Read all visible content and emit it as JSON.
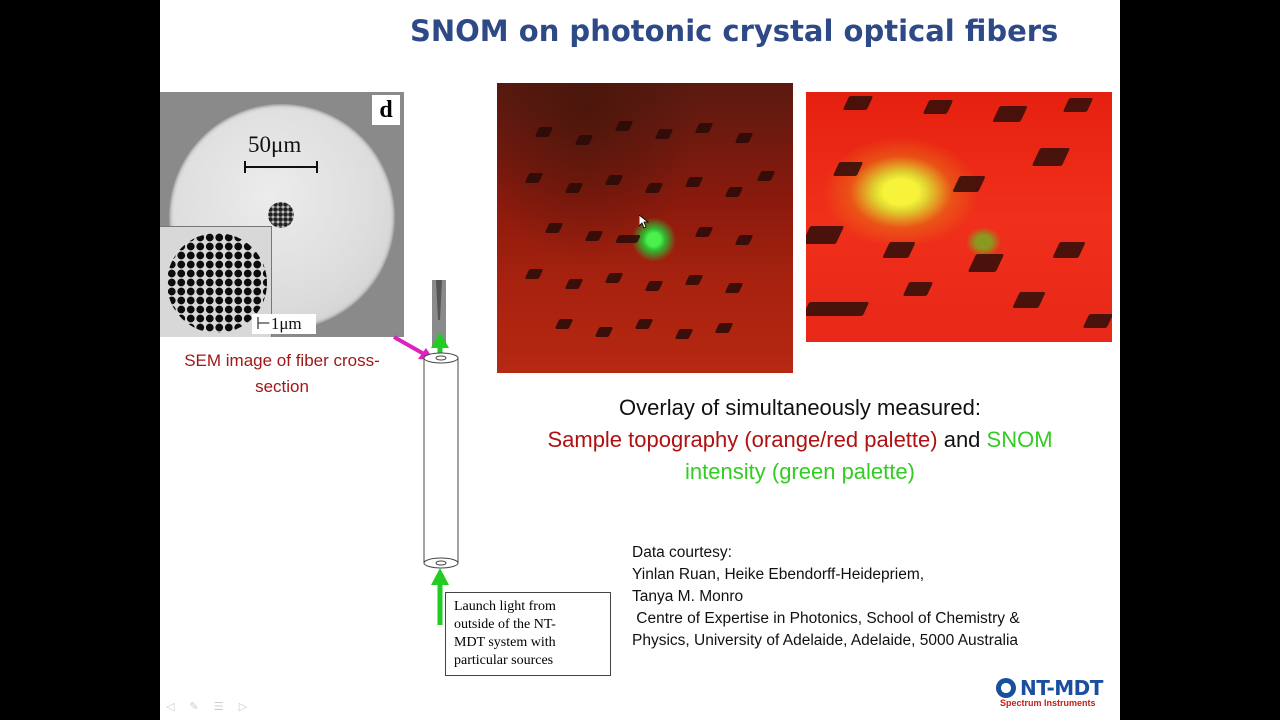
{
  "slide": {
    "title": "SNOM on photonic crystal optical fibers",
    "sem": {
      "panel_label": "d",
      "scale_large": "50μm",
      "scale_small": "1μm",
      "caption_line1": "SEM image of fiber cross-",
      "caption_line2": "section"
    },
    "launch_box": {
      "line1": "Launch light from",
      "line2": "outside of the NT-",
      "line3": "MDT system with",
      "line4": "particular sources"
    },
    "overlay": {
      "line1": "Overlay of simultaneously measured:",
      "topo": "Sample topography (orange/red palette)",
      "and": " and ",
      "snom_a": "SNOM",
      "snom_b": "intensity (green palette)"
    },
    "credits": [
      "Data courtesy:",
      "Yinlan Ruan, Heike Ebendorff-Heidepriem,",
      "Tanya M. Monro",
      " Centre of Expertise in Photonics, School of Chemistry &",
      "Physics, University of Adelaide, Adelaide, 5000 Australia"
    ],
    "logo": {
      "name": "NT-MDT",
      "sub": "Spectrum Instruments"
    },
    "colors": {
      "title": "#2e4a86",
      "topography": "#b01010",
      "snom": "#33cc22",
      "arrow_magenta": "#e020c0"
    },
    "icons": [
      "mouse-cursor-icon",
      "slide-controls-icon"
    ]
  }
}
